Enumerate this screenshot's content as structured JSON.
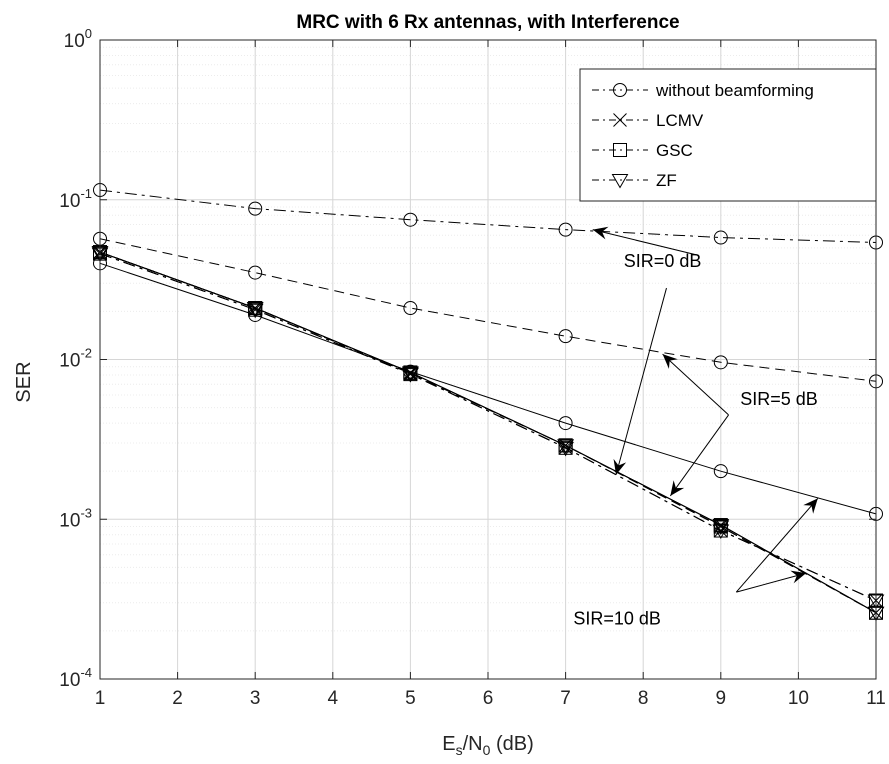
{
  "chart_data": {
    "type": "line",
    "title": "MRC with 6 Rx antennas, with Interference",
    "xlabel": "E_s/N_0 (dB)",
    "xlabel_parts": {
      "main": "E",
      "sub1": "s",
      "mid": "/N",
      "sub2": "0",
      "unit": " (dB)"
    },
    "ylabel": "SER",
    "xlim": [
      1,
      11
    ],
    "ylim": [
      0.0001,
      1
    ],
    "yscale": "log",
    "grid": true,
    "legend_position": "top-right",
    "x_ticks": [
      "1",
      "2",
      "3",
      "4",
      "5",
      "6",
      "7",
      "8",
      "9",
      "10",
      "11"
    ],
    "y_ticks": [
      {
        "base": "10",
        "exp": "0",
        "value": 1
      },
      {
        "base": "10",
        "exp": "-1",
        "value": 0.1
      },
      {
        "base": "10",
        "exp": "-2",
        "value": 0.01
      },
      {
        "base": "10",
        "exp": "-3",
        "value": 0.001
      },
      {
        "base": "10",
        "exp": "-4",
        "value": 0.0001
      }
    ],
    "legend": [
      {
        "label": "without beamforming",
        "marker": "circle",
        "dash": "dashdot"
      },
      {
        "label": "LCMV",
        "marker": "x",
        "dash": "dashdot"
      },
      {
        "label": "GSC",
        "marker": "square",
        "dash": "dashdot"
      },
      {
        "label": "ZF",
        "marker": "triangle-down",
        "dash": "dashdot"
      }
    ],
    "x": [
      1,
      3,
      5,
      7,
      9,
      11
    ],
    "series": [
      {
        "marker": "circle",
        "dash": "dashdot",
        "values": [
          0.115,
          0.088,
          0.075,
          0.065,
          0.058,
          0.054
        ]
      },
      {
        "marker": "circle",
        "dash": "dashed",
        "values": [
          0.057,
          0.035,
          0.021,
          0.014,
          0.0096,
          0.0073
        ]
      },
      {
        "marker": "circle",
        "dash": "solid",
        "values": [
          0.04,
          0.019,
          0.0084,
          0.004,
          0.002,
          0.00108
        ]
      },
      {
        "marker": "x",
        "dash": "solid",
        "values": [
          0.047,
          0.021,
          0.0083,
          0.0029,
          0.00092,
          0.00026
        ]
      },
      {
        "marker": "x",
        "dash": "dashed",
        "values": [
          0.047,
          0.021,
          0.0082,
          0.0029,
          0.0009,
          0.00026
        ]
      },
      {
        "marker": "x",
        "dash": "dashdot",
        "values": [
          0.046,
          0.0205,
          0.0081,
          0.0028,
          0.00085,
          0.00031
        ]
      },
      {
        "marker": "square",
        "dash": "solid",
        "values": [
          0.047,
          0.021,
          0.0083,
          0.0029,
          0.00092,
          0.00026
        ]
      },
      {
        "marker": "square",
        "dash": "dashed",
        "values": [
          0.047,
          0.021,
          0.0082,
          0.0029,
          0.0009,
          0.00026
        ]
      },
      {
        "marker": "square",
        "dash": "dashdot",
        "values": [
          0.046,
          0.0205,
          0.0081,
          0.0028,
          0.00085,
          0.00031
        ]
      },
      {
        "marker": "triangle-down",
        "dash": "solid",
        "values": [
          0.047,
          0.021,
          0.0083,
          0.0029,
          0.00092,
          0.00026
        ]
      },
      {
        "marker": "triangle-down",
        "dash": "dashed",
        "values": [
          0.047,
          0.021,
          0.0082,
          0.0029,
          0.0009,
          0.00026
        ]
      },
      {
        "marker": "triangle-down",
        "dash": "dashdot",
        "values": [
          0.046,
          0.0205,
          0.0081,
          0.0028,
          0.00085,
          0.00031
        ]
      }
    ],
    "annotations": [
      {
        "text": "SIR=0 dB",
        "text_at": {
          "x": 7.75,
          "y": 0.038
        },
        "arrows": [
          {
            "from": {
              "x": 8.7,
              "y": 0.045
            },
            "to": {
              "x": 7.35,
              "y": 0.065
            }
          },
          {
            "from": {
              "x": 8.3,
              "y": 0.028
            },
            "to": {
              "x": 7.65,
              "y": 0.0019
            }
          }
        ]
      },
      {
        "text": "SIR=5 dB",
        "text_at": {
          "x": 9.25,
          "y": 0.0052
        },
        "arrows": [
          {
            "from": {
              "x": 9.1,
              "y": 0.0045
            },
            "to": {
              "x": 8.25,
              "y": 0.0108
            }
          },
          {
            "from": {
              "x": 9.1,
              "y": 0.0045
            },
            "to": {
              "x": 8.35,
              "y": 0.0014
            }
          }
        ]
      },
      {
        "text": "SIR=10 dB",
        "text_at": {
          "x": 7.1,
          "y": 0.00022
        },
        "arrows": [
          {
            "from": {
              "x": 9.2,
              "y": 0.00035
            },
            "to": {
              "x": 10.25,
              "y": 0.00135
            }
          },
          {
            "from": {
              "x": 9.2,
              "y": 0.00035
            },
            "to": {
              "x": 10.1,
              "y": 0.00046
            }
          }
        ]
      }
    ],
    "colors": {
      "line": "#000000",
      "grid_minor": "#ececec",
      "grid_major": "#d6d6d6",
      "axis": "#262626",
      "background": "#ffffff"
    }
  }
}
